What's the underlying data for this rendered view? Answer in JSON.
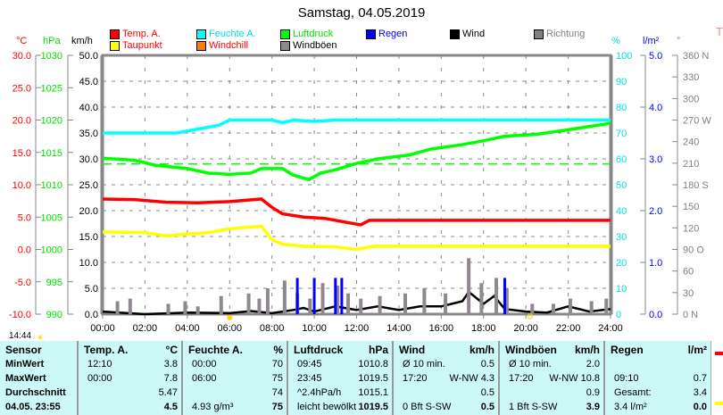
{
  "title": "Samstag, 04.05.2019",
  "legend": [
    {
      "label": "Temp. A.",
      "color": "#ff0000",
      "text_color": "#ff0000"
    },
    {
      "label": "Taupunkt",
      "color": "#ffff00",
      "text_color": "#ff0000"
    },
    {
      "label": "Feuchte A.",
      "color": "#00ffff",
      "text_color": "#00e0e0"
    },
    {
      "label": "Windchill",
      "color": "#ff8000",
      "text_color": "#ff0000"
    },
    {
      "label": "Luftdruck",
      "color": "#00ff00",
      "text_color": "#00dd00"
    },
    {
      "label": "Windböen",
      "color": "#908890",
      "text_color": "#000000"
    },
    {
      "label": "Regen",
      "color": "#0000ff",
      "text_color": "#0000ff"
    },
    {
      "label": "Wind",
      "color": "#000000",
      "text_color": "#000000"
    },
    {
      "label": "Richtung",
      "color": "#808080",
      "text_color": "#808080"
    }
  ],
  "axis_units": {
    "temp": "°C",
    "pressure": "hPa",
    "speed": "km/h",
    "humidity": "%",
    "rain": "l/m²",
    "direction": "°",
    "extra": "T"
  },
  "current_time": "14:44",
  "chart_data": {
    "type": "line",
    "x_ticks": [
      "00:00",
      "02:00",
      "04:00",
      "06:00",
      "08:00",
      "10:00",
      "12:00",
      "14:00",
      "16:00",
      "18:00",
      "20:00",
      "22:00",
      "24:00"
    ],
    "xlim": [
      0,
      24
    ],
    "axes": {
      "temp": {
        "range": [
          -10,
          30
        ],
        "ticks": [
          "30.0",
          "25.0",
          "20.0",
          "15.0",
          "10.0",
          "5.0",
          "0.0",
          "-5.0",
          "-10.0"
        ],
        "color": "#ff0000"
      },
      "pressure": {
        "range": [
          990,
          1030
        ],
        "ticks": [
          "1030",
          "1025",
          "1020",
          "1015",
          "1010",
          "1005",
          "1000",
          "995",
          "990"
        ],
        "color": "#00dd00"
      },
      "speed": {
        "range": [
          0,
          50
        ],
        "ticks": [
          "50.0",
          "45.0",
          "40.0",
          "35.0",
          "30.0",
          "25.0",
          "20.0",
          "15.0",
          "10.0",
          "5.0",
          "0.0"
        ],
        "color": "#000000"
      },
      "humidity": {
        "range": [
          0,
          100
        ],
        "ticks": [
          "100",
          "90",
          "80",
          "70",
          "60",
          "50",
          "40",
          "30",
          "20",
          "10",
          "0"
        ],
        "color": "#00e0e0"
      },
      "rain": {
        "range": [
          0,
          5
        ],
        "ticks": [
          "5.0",
          "4.0",
          "3.0",
          "2.0",
          "1.0",
          "0.0"
        ],
        "color": "#0000ff"
      },
      "direction": {
        "range": [
          0,
          360
        ],
        "ticks": [
          "360 N",
          "330",
          "300",
          "270 W",
          "240",
          "210",
          "180 S",
          "150",
          "120",
          "90  O",
          "60",
          "30",
          "0   N"
        ],
        "color": "#808080"
      }
    },
    "series": [
      {
        "name": "Feuchte A.",
        "axis": "humidity",
        "color": "#00ffff",
        "points": [
          [
            0,
            70
          ],
          [
            3.5,
            70
          ],
          [
            4.5,
            71.5
          ],
          [
            5.5,
            73
          ],
          [
            6,
            75
          ],
          [
            7,
            75
          ],
          [
            8,
            75
          ],
          [
            8.5,
            74
          ],
          [
            9,
            75
          ],
          [
            10,
            74.5
          ],
          [
            11,
            75
          ],
          [
            12,
            75
          ],
          [
            24,
            75
          ]
        ]
      },
      {
        "name": "Luftdruck",
        "axis": "pressure",
        "color": "#00ff00",
        "points": [
          [
            0,
            1014.1
          ],
          [
            1.5,
            1013.8
          ],
          [
            2.5,
            1013
          ],
          [
            4,
            1012.5
          ],
          [
            5,
            1011.8
          ],
          [
            6,
            1011.6
          ],
          [
            7,
            1011.8
          ],
          [
            7.5,
            1012.5
          ],
          [
            8.5,
            1012.5
          ],
          [
            9,
            1011.5
          ],
          [
            9.75,
            1010.8
          ],
          [
            10.3,
            1011.8
          ],
          [
            11,
            1012.3
          ],
          [
            12,
            1013.3
          ],
          [
            13,
            1014
          ],
          [
            14.5,
            1014.6
          ],
          [
            15.5,
            1015.5
          ],
          [
            17,
            1016.2
          ],
          [
            18,
            1016.8
          ],
          [
            19,
            1017.5
          ],
          [
            20.5,
            1017.8
          ],
          [
            22,
            1018.5
          ],
          [
            23,
            1019
          ],
          [
            24,
            1019.5
          ]
        ]
      },
      {
        "name": "Temp. A.",
        "axis": "temp",
        "color": "#ff0000",
        "points": [
          [
            0,
            7.8
          ],
          [
            1.5,
            7.7
          ],
          [
            3,
            7.3
          ],
          [
            4.5,
            7.2
          ],
          [
            6,
            7.4
          ],
          [
            7.5,
            7.8
          ],
          [
            8,
            6.5
          ],
          [
            8.5,
            5.5
          ],
          [
            9.5,
            5
          ],
          [
            10.5,
            4.8
          ],
          [
            11.5,
            4.2
          ],
          [
            12.2,
            3.8
          ],
          [
            12.6,
            4.5
          ],
          [
            24,
            4.5
          ]
        ]
      },
      {
        "name": "Taupunkt",
        "axis": "temp",
        "color": "#ffff00",
        "points": [
          [
            0,
            2.7
          ],
          [
            2,
            2.6
          ],
          [
            3,
            2.1
          ],
          [
            4,
            2.4
          ],
          [
            5,
            2.6
          ],
          [
            6,
            3.2
          ],
          [
            7.5,
            3.6
          ],
          [
            8,
            1.5
          ],
          [
            8.5,
            0.8
          ],
          [
            9.5,
            0.5
          ],
          [
            11,
            0.4
          ],
          [
            12,
            0
          ],
          [
            12.8,
            0.5
          ],
          [
            24,
            0.5
          ]
        ]
      },
      {
        "name": "Wind",
        "axis": "speed",
        "color": "#000000",
        "points": [
          [
            0,
            0.5
          ],
          [
            2,
            0
          ],
          [
            4,
            0.3
          ],
          [
            6,
            0.2
          ],
          [
            7,
            0.6
          ],
          [
            8,
            0.2
          ],
          [
            9,
            0.8
          ],
          [
            9.5,
            1.2
          ],
          [
            10,
            0.5
          ],
          [
            11,
            1.5
          ],
          [
            12,
            0.8
          ],
          [
            13,
            1.5
          ],
          [
            14,
            0.8
          ],
          [
            15,
            1.5
          ],
          [
            16,
            1.5
          ],
          [
            17,
            2.5
          ],
          [
            17.3,
            4.3
          ],
          [
            18,
            2
          ],
          [
            18.5,
            3.5
          ],
          [
            19,
            1
          ],
          [
            20,
            0.5
          ],
          [
            21,
            0.3
          ],
          [
            22,
            1.5
          ],
          [
            23,
            0.5
          ],
          [
            24,
            1
          ]
        ]
      },
      {
        "name": "Windböen",
        "axis": "speed",
        "color": "#908890",
        "type": "bars",
        "points": [
          [
            0.7,
            2.5
          ],
          [
            1.3,
            3
          ],
          [
            3.1,
            2
          ],
          [
            3.9,
            2.5
          ],
          [
            4.5,
            1.5
          ],
          [
            5.6,
            3.5
          ],
          [
            6.9,
            4
          ],
          [
            7.4,
            3
          ],
          [
            7.8,
            5
          ],
          [
            8.6,
            6.5
          ],
          [
            9.2,
            4
          ],
          [
            9.8,
            3
          ],
          [
            10.4,
            6
          ],
          [
            11.1,
            5.5
          ],
          [
            11.6,
            4
          ],
          [
            12.2,
            3
          ],
          [
            13.1,
            3.5
          ],
          [
            14.3,
            4
          ],
          [
            15.2,
            5
          ],
          [
            16.2,
            4
          ],
          [
            17.3,
            10.8
          ],
          [
            17.9,
            6
          ],
          [
            18.6,
            7
          ],
          [
            19.1,
            5
          ],
          [
            20.3,
            2
          ],
          [
            21.3,
            2
          ],
          [
            22.1,
            3
          ],
          [
            23.1,
            2.5
          ],
          [
            23.8,
            3
          ]
        ]
      },
      {
        "name": "Regen",
        "axis": "rain",
        "color": "#0000ff",
        "type": "bars",
        "points": [
          [
            9.2,
            0.7
          ],
          [
            10,
            0.7
          ],
          [
            11,
            0.7
          ],
          [
            11.3,
            0.7
          ],
          [
            19,
            0.7
          ]
        ]
      }
    ],
    "reference_lines": [
      {
        "axis": "pressure",
        "value": 1013.2,
        "color": "#00ff00",
        "style": "dashed"
      }
    ]
  },
  "table": {
    "columns": [
      {
        "header": "Sensor",
        "unit": "",
        "rows": [
          [
            "MinWert",
            ""
          ],
          [
            "MaxWert",
            ""
          ],
          [
            "Durchschnitt",
            ""
          ],
          [
            "04.05. 23:55",
            ""
          ]
        ]
      },
      {
        "header": "Temp. A.",
        "unit": "°C",
        "rows": [
          [
            "12:10",
            "3.8"
          ],
          [
            "00:00",
            "7.8"
          ],
          [
            "",
            "5.47"
          ],
          [
            "",
            "4.5"
          ]
        ]
      },
      {
        "header": "Feuchte A.",
        "unit": "%",
        "rows": [
          [
            "00:00",
            "70"
          ],
          [
            "06:00",
            "75"
          ],
          [
            "",
            "74"
          ],
          [
            "4.93 g/m³",
            "75"
          ]
        ]
      },
      {
        "header": "Luftdruck",
        "unit": "hPa",
        "rows": [
          [
            "09:45",
            "1010.8"
          ],
          [
            "23:45",
            "1019.5"
          ],
          [
            "^2.4hPa/h",
            "1015.1"
          ],
          [
            "leicht bewölkt",
            "1019.5"
          ]
        ]
      },
      {
        "header": "Wind",
        "unit": "km/h",
        "rows": [
          [
            "Ø 10 min.",
            "0.5"
          ],
          [
            "17:20",
            "W-NW 4.3"
          ],
          [
            "",
            "0.5"
          ],
          [
            "0 Bft S-SW",
            "0.5"
          ]
        ]
      },
      {
        "header": "Windböen",
        "unit": "km/h",
        "rows": [
          [
            "Ø 10 min.",
            "2.0"
          ],
          [
            "17:20",
            "W-NW 10.8"
          ],
          [
            "",
            "0.9"
          ],
          [
            "1 Bft S-SW",
            "3.9"
          ]
        ]
      },
      {
        "header": "Regen",
        "unit": "l/m²",
        "rows": [
          [
            "",
            ""
          ],
          [
            "09:10",
            "0.7"
          ],
          [
            "Gesamt:",
            "3.4"
          ],
          [
            "3.4 l/m²",
            "0.0"
          ]
        ]
      }
    ]
  }
}
